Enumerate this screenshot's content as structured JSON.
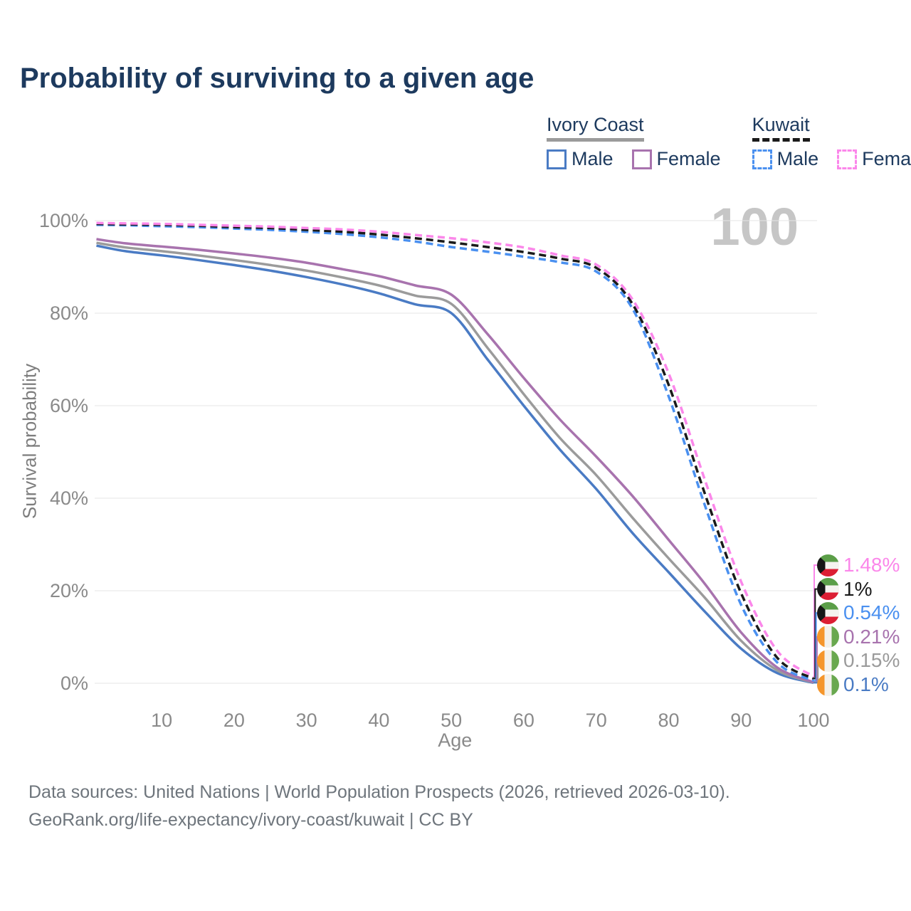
{
  "title": "Probability of surviving to a given age",
  "age_watermark": "100",
  "legend": {
    "groups": [
      {
        "label": "Ivory Coast",
        "line_style": "solid",
        "underline_color": "#9b9b9b",
        "items": [
          {
            "label": "Male",
            "color": "#4a7bc4",
            "dashed": false
          },
          {
            "label": "Female",
            "color": "#a873ae",
            "dashed": false
          }
        ]
      },
      {
        "label": "Kuwait",
        "line_style": "dashed",
        "underline_color": "#1a1a1a",
        "items": [
          {
            "label": "Male",
            "color": "#4a90f0",
            "dashed": true
          },
          {
            "label": "Female",
            "color": "#fb87ea",
            "dashed": true
          }
        ]
      }
    ]
  },
  "chart_data": {
    "type": "line",
    "title": "Probability of surviving to a given age",
    "xlabel": "Age",
    "ylabel": "Survival probability",
    "xlim": [
      1,
      100
    ],
    "ylim": [
      0,
      100
    ],
    "x_ticks": [
      10,
      20,
      30,
      40,
      50,
      60,
      70,
      80,
      90,
      100
    ],
    "y_ticks": [
      0,
      20,
      40,
      60,
      80,
      100
    ],
    "y_tick_labels": [
      "0%",
      "20%",
      "40%",
      "60%",
      "80%",
      "100%"
    ],
    "grid": "horizontal-only",
    "legend_position": "top-right",
    "age_indicator": "100",
    "x": [
      1,
      5,
      10,
      15,
      20,
      25,
      30,
      35,
      40,
      45,
      50,
      55,
      60,
      65,
      70,
      75,
      80,
      85,
      90,
      95,
      100
    ],
    "series": [
      {
        "name": "Ivory Coast Male",
        "country": "Ivory Coast",
        "sex": "Male",
        "color": "#4a7bc4",
        "dash": "solid",
        "end_label": "0.1%",
        "values": [
          94.6,
          93.4,
          92.5,
          91.5,
          90.4,
          89.2,
          87.8,
          86.2,
          84.3,
          81.9,
          80.0,
          70.0,
          60.0,
          50.5,
          42.0,
          32.5,
          24.0,
          15.5,
          7.5,
          2.2,
          0.1
        ]
      },
      {
        "name": "Ivory Coast",
        "country": "Ivory Coast",
        "sex": "Both",
        "color": "#9b9b9b",
        "dash": "solid",
        "end_label": "0.15%",
        "values": [
          95.2,
          94.2,
          93.4,
          92.5,
          91.5,
          90.4,
          89.2,
          87.7,
          86.0,
          83.8,
          82.0,
          72.5,
          62.5,
          53.0,
          45.0,
          35.8,
          27.0,
          18.5,
          9.2,
          2.8,
          0.15
        ]
      },
      {
        "name": "Ivory Coast Female",
        "country": "Ivory Coast",
        "sex": "Female",
        "color": "#a873ae",
        "dash": "solid",
        "end_label": "0.21%",
        "values": [
          96.0,
          95.1,
          94.4,
          93.7,
          92.9,
          92.0,
          90.9,
          89.5,
          88.0,
          86.0,
          84.0,
          75.5,
          66.0,
          57.0,
          49.0,
          40.5,
          31.0,
          21.5,
          11.0,
          3.4,
          0.21
        ]
      },
      {
        "name": "Kuwait Male",
        "country": "Kuwait",
        "sex": "Male",
        "color": "#4a90f0",
        "dash": "dashed",
        "end_label": "0.54%",
        "values": [
          99.1,
          99.0,
          98.8,
          98.6,
          98.3,
          98.0,
          97.6,
          97.1,
          96.4,
          95.5,
          94.3,
          93.3,
          92.2,
          91.0,
          89.0,
          81.0,
          62.0,
          38.5,
          17.0,
          4.5,
          0.54
        ]
      },
      {
        "name": "Kuwait",
        "country": "Kuwait",
        "sex": "Both",
        "color": "#1a1a1a",
        "dash": "dashed",
        "end_label": "1%",
        "values": [
          99.3,
          99.2,
          99.1,
          98.9,
          98.6,
          98.4,
          98.0,
          97.6,
          97.0,
          96.2,
          95.3,
          94.3,
          93.2,
          91.8,
          89.8,
          82.0,
          64.5,
          41.0,
          19.5,
          5.5,
          1.0
        ]
      },
      {
        "name": "Kuwait Female",
        "country": "Kuwait",
        "sex": "Female",
        "color": "#fb87ea",
        "dash": "dashed",
        "end_label": "1.48%",
        "values": [
          99.5,
          99.4,
          99.3,
          99.1,
          98.9,
          98.7,
          98.4,
          98.1,
          97.6,
          96.9,
          96.2,
          95.3,
          94.2,
          92.5,
          90.5,
          83.0,
          67.0,
          44.0,
          22.0,
          7.0,
          1.48
        ]
      }
    ],
    "end_labels": [
      {
        "text": "1.48%",
        "series": "Kuwait Female",
        "flag": "kuwait",
        "color": "#fb87ea"
      },
      {
        "text": "1%",
        "series": "Kuwait",
        "flag": "kuwait",
        "color": "#1a1a1a"
      },
      {
        "text": "0.54%",
        "series": "Kuwait Male",
        "flag": "kuwait",
        "color": "#4a90f0"
      },
      {
        "text": "0.21%",
        "series": "Ivory Coast Female",
        "flag": "ivory-coast",
        "color": "#a873ae"
      },
      {
        "text": "0.15%",
        "series": "Ivory Coast",
        "flag": "ivory-coast",
        "color": "#9b9b9b"
      },
      {
        "text": "0.1%",
        "series": "Ivory Coast Male",
        "flag": "ivory-coast",
        "color": "#4a7bc4"
      }
    ]
  },
  "footer": {
    "line1": "Data sources: United Nations | World Population Prospects (2026, retrieved 2026-03-10).",
    "line2": "GeoRank.org/life-expectancy/ivory-coast/kuwait | CC BY"
  }
}
